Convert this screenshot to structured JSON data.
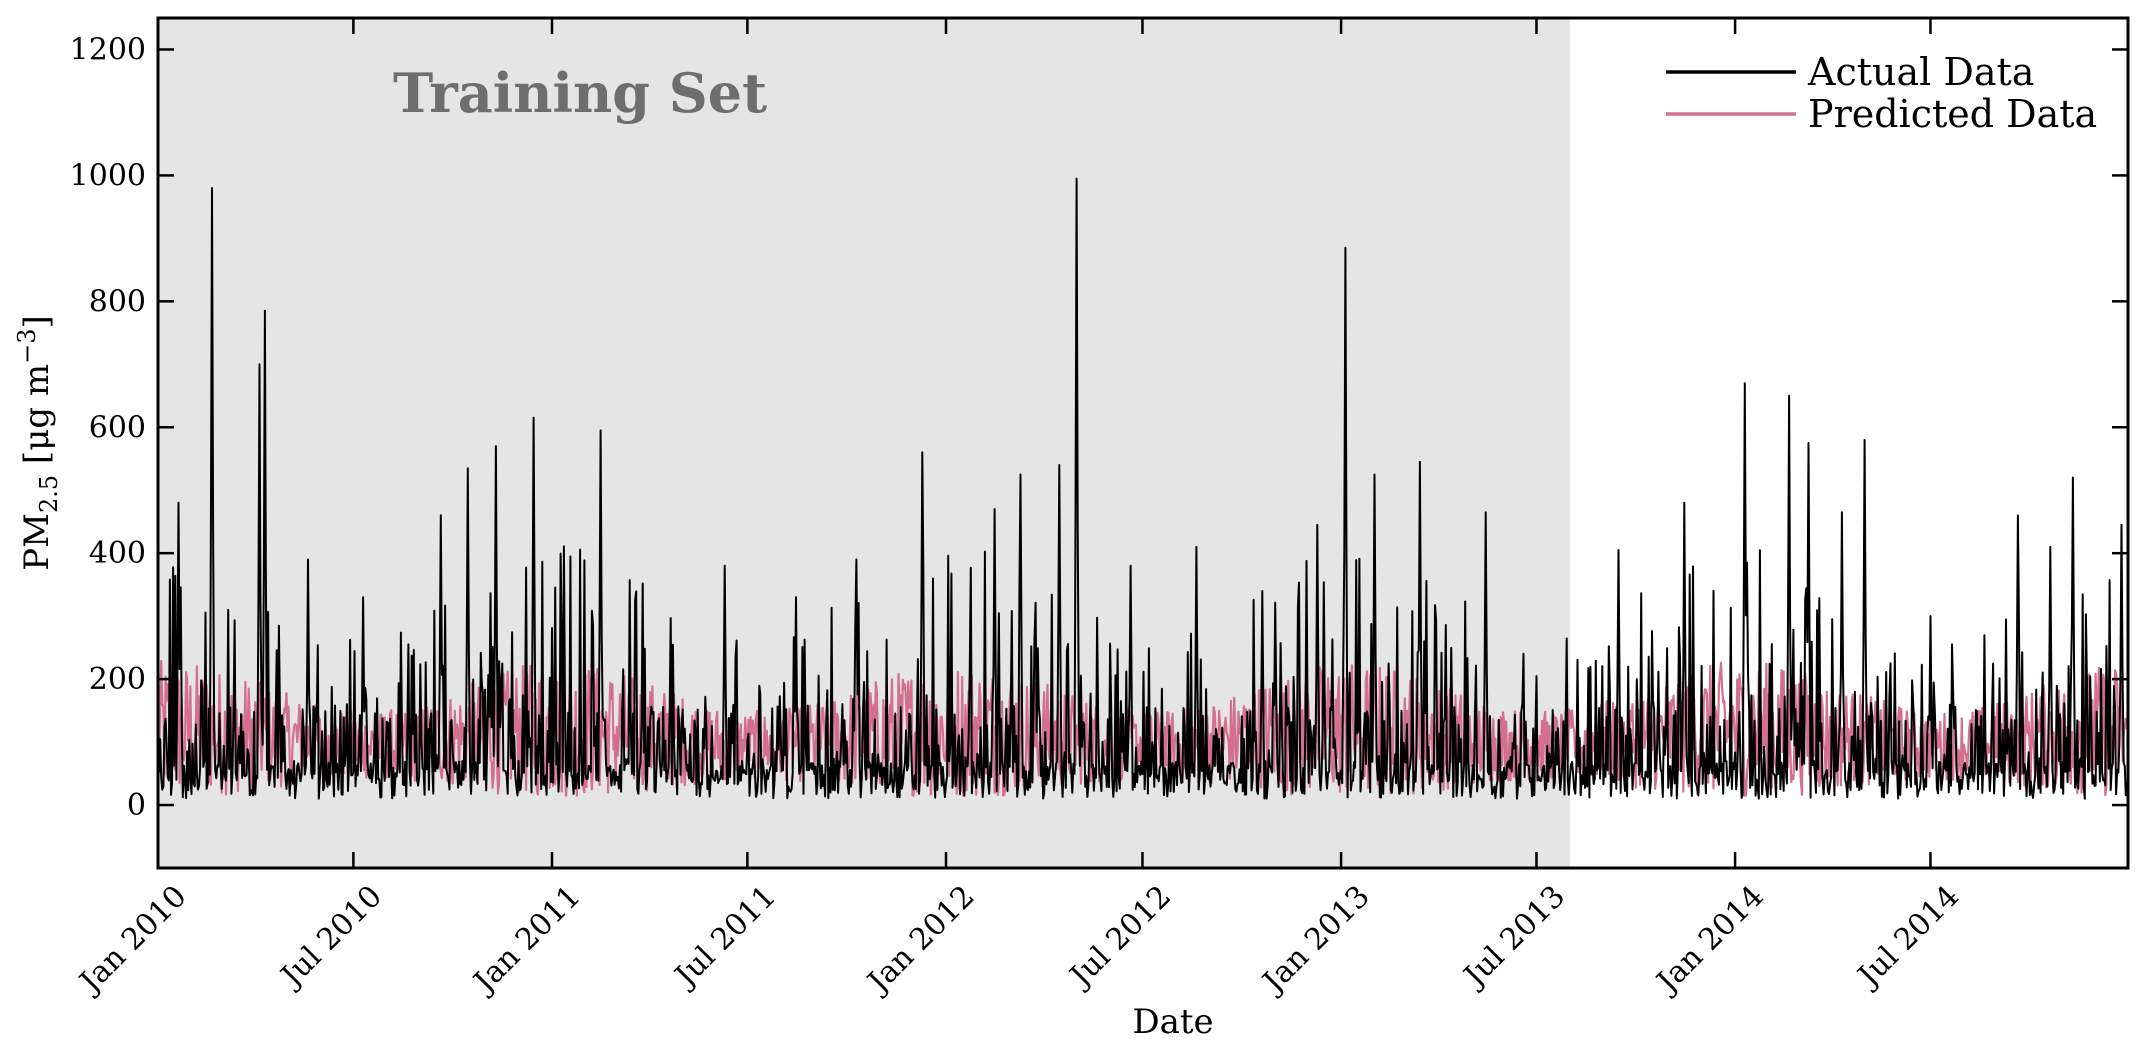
{
  "chart_data": {
    "type": "line",
    "xlabel": "Date",
    "ylabel": "PM2.5 [μg m−3]",
    "ylabel_parts": {
      "base": "PM",
      "subscript": "2.5",
      "unit_open": " [μg m",
      "superscript": "−3",
      "unit_close": "]"
    },
    "xlim": [
      "2010-01-01",
      "2014-12-31"
    ],
    "ylim": [
      -100,
      1250
    ],
    "y_ticks": [
      0,
      200,
      400,
      600,
      800,
      1000,
      1200
    ],
    "x_ticks": [
      {
        "label": "Jan 2010",
        "date": "2010-01-01"
      },
      {
        "label": "Jul 2010",
        "date": "2010-07-01"
      },
      {
        "label": "Jan 2011",
        "date": "2011-01-01"
      },
      {
        "label": "Jul 2011",
        "date": "2011-07-01"
      },
      {
        "label": "Jan 2012",
        "date": "2012-01-01"
      },
      {
        "label": "Jul 2012",
        "date": "2012-07-01"
      },
      {
        "label": "Jan 2013",
        "date": "2013-01-01"
      },
      {
        "label": "Jul 2013",
        "date": "2013-07-01"
      },
      {
        "label": "Jan 2014",
        "date": "2014-01-01"
      },
      {
        "label": "Jul 2014",
        "date": "2014-07-01"
      }
    ],
    "grid": false,
    "legend_position": "top-right",
    "training_region": {
      "label": "Training Set",
      "start": "2010-01-01",
      "end": "2013-08-01",
      "color": "#e5e5e5"
    },
    "series": [
      {
        "name": "Actual Data",
        "color": "#000000",
        "peaks": [
          {
            "date": "2010-01-20",
            "value": 480
          },
          {
            "date": "2010-02-20",
            "value": 980
          },
          {
            "date": "2010-04-05",
            "value": 700
          },
          {
            "date": "2010-04-10",
            "value": 785
          },
          {
            "date": "2010-05-20",
            "value": 390
          },
          {
            "date": "2010-07-10",
            "value": 330
          },
          {
            "date": "2010-09-20",
            "value": 460
          },
          {
            "date": "2010-10-15",
            "value": 535
          },
          {
            "date": "2010-11-10",
            "value": 570
          },
          {
            "date": "2010-12-15",
            "value": 615
          },
          {
            "date": "2011-02-15",
            "value": 595
          },
          {
            "date": "2011-06-10",
            "value": 380
          },
          {
            "date": "2011-08-15",
            "value": 330
          },
          {
            "date": "2011-10-10",
            "value": 390
          },
          {
            "date": "2011-12-10",
            "value": 560
          },
          {
            "date": "2012-02-15",
            "value": 470
          },
          {
            "date": "2012-03-10",
            "value": 525
          },
          {
            "date": "2012-04-15",
            "value": 540
          },
          {
            "date": "2012-05-01",
            "value": 995
          },
          {
            "date": "2012-06-20",
            "value": 380
          },
          {
            "date": "2012-08-20",
            "value": 410
          },
          {
            "date": "2012-10-20",
            "value": 340
          },
          {
            "date": "2012-12-10",
            "value": 445
          },
          {
            "date": "2013-01-05",
            "value": 885
          },
          {
            "date": "2013-02-01",
            "value": 525
          },
          {
            "date": "2013-03-15",
            "value": 545
          },
          {
            "date": "2013-05-15",
            "value": 465
          },
          {
            "date": "2013-09-15",
            "value": 405
          },
          {
            "date": "2013-11-15",
            "value": 480
          },
          {
            "date": "2014-01-10",
            "value": 670
          },
          {
            "date": "2014-02-20",
            "value": 650
          },
          {
            "date": "2014-03-10",
            "value": 575
          },
          {
            "date": "2014-04-10",
            "value": 465
          },
          {
            "date": "2014-05-01",
            "value": 580
          },
          {
            "date": "2014-07-01",
            "value": 300
          },
          {
            "date": "2014-09-20",
            "value": 460
          },
          {
            "date": "2014-10-20",
            "value": 410
          },
          {
            "date": "2014-11-10",
            "value": 520
          },
          {
            "date": "2014-12-25",
            "value": 445
          }
        ]
      },
      {
        "name": "Predicted Data",
        "color": "#d4708f"
      }
    ]
  }
}
